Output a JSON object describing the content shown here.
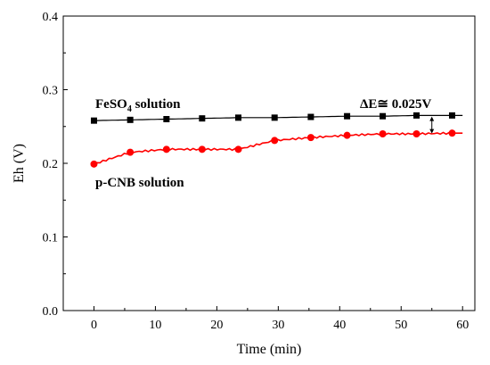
{
  "chart_data": {
    "type": "line",
    "xlabel": "Time (min)",
    "ylabel": "Eh (V)",
    "xlim": [
      -5,
      62
    ],
    "ylim": [
      0.0,
      0.4
    ],
    "xticks": [
      0,
      10,
      20,
      30,
      40,
      50,
      60
    ],
    "yticks": [
      0.0,
      0.1,
      0.2,
      0.3,
      0.4
    ],
    "xtick_labels": [
      "0",
      "10",
      "20",
      "30",
      "40",
      "50",
      "60"
    ],
    "ytick_labels": [
      "0.0",
      "0.1",
      "0.2",
      "0.3",
      "0.4"
    ],
    "series": [
      {
        "name": "FeSO4 solution",
        "color": "#000000",
        "marker": "square",
        "x": [
          0,
          5.9,
          11.8,
          17.6,
          23.5,
          29.4,
          35.3,
          41.2,
          47.0,
          52.5,
          58.3
        ],
        "y": [
          0.258,
          0.259,
          0.26,
          0.261,
          0.262,
          0.262,
          0.263,
          0.264,
          0.264,
          0.265,
          0.265
        ]
      },
      {
        "name": "p-CNB solution",
        "color": "#ff0000",
        "marker": "circle",
        "x": [
          0,
          5.9,
          11.8,
          17.6,
          23.5,
          29.4,
          35.3,
          41.2,
          47.0,
          52.5,
          58.3
        ],
        "y": [
          0.199,
          0.215,
          0.219,
          0.219,
          0.219,
          0.231,
          0.235,
          0.238,
          0.24,
          0.24,
          0.241
        ]
      }
    ],
    "annotations": {
      "feso4_label": "FeSO",
      "feso4_sub": "4",
      "feso4_rest": " solution",
      "pcnb_label": "p-CNB solution",
      "delta_label": "ΔE≅ 0.025V"
    },
    "grid": false,
    "legend": "none"
  }
}
